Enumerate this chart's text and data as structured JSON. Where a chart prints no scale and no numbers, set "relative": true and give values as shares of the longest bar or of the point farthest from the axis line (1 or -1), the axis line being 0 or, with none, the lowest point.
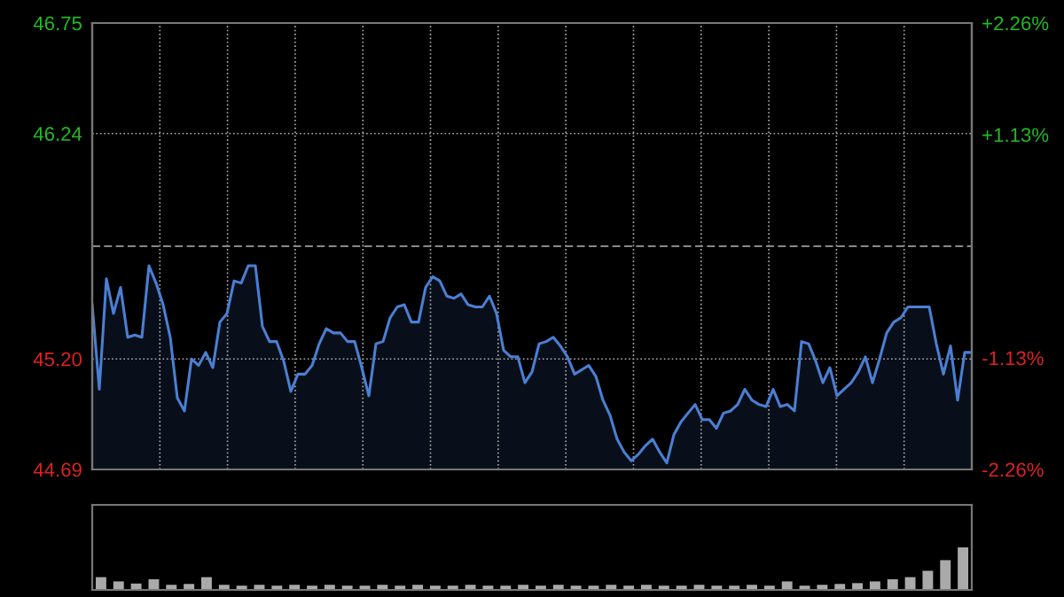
{
  "chart_data": [
    {
      "type": "area",
      "categories": [
        null,
        null,
        null,
        null,
        null,
        null,
        null,
        null,
        null,
        null,
        null,
        null,
        null,
        null,
        null,
        null,
        null,
        null,
        null,
        null,
        null,
        null,
        null,
        null,
        null,
        null,
        null,
        null,
        null,
        null,
        null,
        null,
        null,
        null,
        null,
        null,
        null,
        null,
        null,
        null,
        null,
        null,
        null,
        null,
        null,
        null,
        null,
        null,
        null,
        null,
        null,
        null,
        null,
        null,
        null,
        null,
        null,
        null,
        null,
        null,
        null,
        null,
        null,
        null,
        null,
        null,
        null,
        null,
        null,
        null,
        null,
        null,
        null,
        null,
        null,
        null,
        null,
        null,
        null,
        null,
        null,
        null,
        null,
        null,
        null,
        null,
        null,
        null,
        null,
        null,
        null,
        null,
        null,
        null,
        null,
        null,
        null,
        null,
        null,
        null,
        null,
        null,
        null,
        null,
        null,
        null,
        null,
        null,
        null,
        null,
        null,
        null,
        null,
        null,
        null,
        null,
        null,
        null,
        null,
        null,
        null,
        null,
        null,
        null,
        null
      ],
      "series": [
        {
          "color": "#4a7fd4",
          "values": [
            45.45,
            45.06,
            45.57,
            45.41,
            45.53,
            45.3,
            45.31,
            45.3,
            45.63,
            45.55,
            45.45,
            45.3,
            45.02,
            44.96,
            45.2,
            45.17,
            45.23,
            45.16,
            45.37,
            45.41,
            45.56,
            45.55,
            45.63,
            45.63,
            45.35,
            45.28,
            45.28,
            45.19,
            45.05,
            45.13,
            45.13,
            45.17,
            45.27,
            45.34,
            45.32,
            45.32,
            45.28,
            45.28,
            45.16,
            45.03,
            45.27,
            45.28,
            45.39,
            45.44,
            45.45,
            45.37,
            45.37,
            45.53,
            45.58,
            45.56,
            45.49,
            45.48,
            45.5,
            45.45,
            45.44,
            45.44,
            45.49,
            45.41,
            45.24,
            45.21,
            45.21,
            45.09,
            45.14,
            45.27,
            45.28,
            45.3,
            45.26,
            45.21,
            45.13,
            45.15,
            45.17,
            45.12,
            45.01,
            44.94,
            44.83,
            44.77,
            44.73,
            44.76,
            44.8,
            44.83,
            44.77,
            44.72,
            44.85,
            44.91,
            44.95,
            44.99,
            44.92,
            44.92,
            44.88,
            44.95,
            44.96,
            44.99,
            45.06,
            45.01,
            44.99,
            44.98,
            45.06,
            44.98,
            44.99,
            44.96,
            45.28,
            45.27,
            45.19,
            45.09,
            45.16,
            45.03,
            45.06,
            45.09,
            45.14,
            45.21,
            45.09,
            45.2,
            45.32,
            45.37,
            45.39,
            45.44,
            45.44,
            45.44,
            45.44,
            45.27,
            45.13,
            45.26,
            45.01,
            45.23,
            45.23
          ]
        }
      ],
      "ylim": [
        44.69,
        46.75
      ],
      "yticks": [
        44.69,
        {
          "value": 45.2,
          "label": "45.20"
        },
        46.24,
        46.75
      ],
      "y2lim": [
        -2.26,
        2.26
      ],
      "y2ticks": [
        {
          "value": -2.26,
          "label": "-2.26%"
        },
        {
          "value": -1.13,
          "label": "-1.13%"
        },
        {
          "value": 1.13,
          "label": "+1.13%"
        },
        {
          "value": 2.26,
          "label": "+2.26%"
        }
      ],
      "ref_lines": [
        {
          "axis": "y",
          "value": 45.72,
          "line_style": "dashed",
          "color": "#888888"
        }
      ],
      "grid": true,
      "tick_labels": "y"
    },
    {
      "type": "bar",
      "relative": true,
      "categories": [
        null,
        null,
        null,
        null,
        null,
        null,
        null,
        null,
        null,
        null,
        null,
        null,
        null,
        null,
        null,
        null,
        null,
        null,
        null,
        null,
        null,
        null,
        null,
        null,
        null,
        null,
        null,
        null,
        null,
        null,
        null,
        null,
        null,
        null,
        null,
        null,
        null,
        null,
        null,
        null,
        null,
        null,
        null,
        null,
        null,
        null,
        null,
        null,
        null,
        null
      ],
      "values": [
        0.3,
        0.2,
        0.15,
        0.25,
        0.12,
        0.14,
        0.3,
        0.12,
        0.1,
        0.12,
        0.1,
        0.12,
        0.1,
        0.12,
        0.1,
        0.1,
        0.12,
        0.1,
        0.12,
        0.1,
        0.1,
        0.12,
        0.1,
        0.1,
        0.12,
        0.1,
        0.12,
        0.1,
        0.1,
        0.12,
        0.1,
        0.12,
        0.1,
        0.1,
        0.12,
        0.1,
        0.1,
        0.12,
        0.1,
        0.2,
        0.1,
        0.12,
        0.14,
        0.16,
        0.2,
        0.25,
        0.3,
        0.45,
        0.7,
        1
      ],
      "color": "#aaaaaa"
    }
  ]
}
